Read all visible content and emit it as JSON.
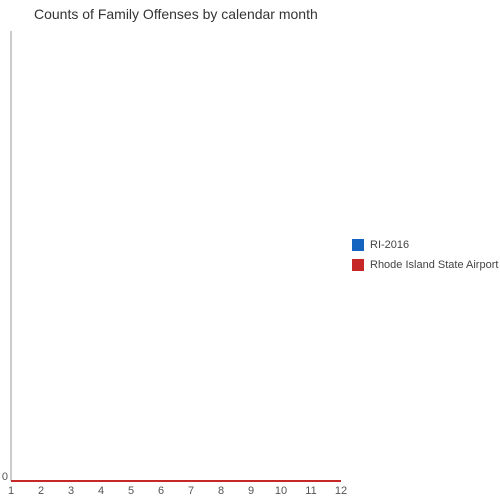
{
  "chart_data": {
    "type": "line",
    "title": "Counts of Family Offenses by calendar month",
    "xlabel": "",
    "ylabel": "",
    "x": [
      1,
      2,
      3,
      4,
      5,
      6,
      7,
      8,
      9,
      10,
      11,
      12
    ],
    "xlim": [
      1,
      12
    ],
    "ylim": [
      0,
      1
    ],
    "y_ticks": [
      0
    ],
    "grid": false,
    "legend_position": "right",
    "series": [
      {
        "name": "RI-2016",
        "color": "#1565c0",
        "values": [
          0,
          0,
          0,
          0,
          0,
          0,
          0,
          0,
          0,
          0,
          0,
          0
        ]
      },
      {
        "name": "Rhode Island State Airport",
        "color": "#c62828",
        "values": [
          0,
          0,
          0,
          0,
          0,
          0,
          0,
          0,
          0,
          0,
          0,
          0
        ]
      }
    ]
  }
}
